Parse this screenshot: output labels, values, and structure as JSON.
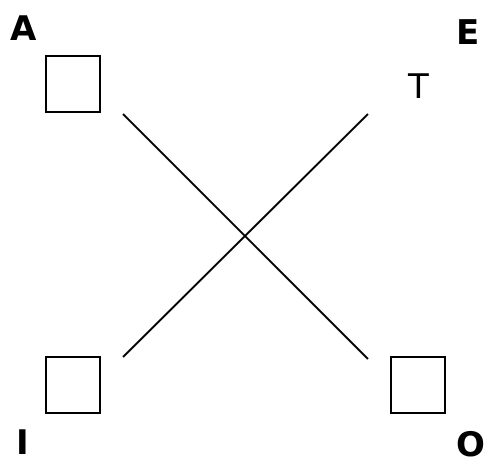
{
  "corners": {
    "top_left": {
      "label": "A"
    },
    "top_right": {
      "label": "E",
      "glyph": "T"
    },
    "bottom_left": {
      "label": "I"
    },
    "bottom_right": {
      "label": "O"
    }
  }
}
